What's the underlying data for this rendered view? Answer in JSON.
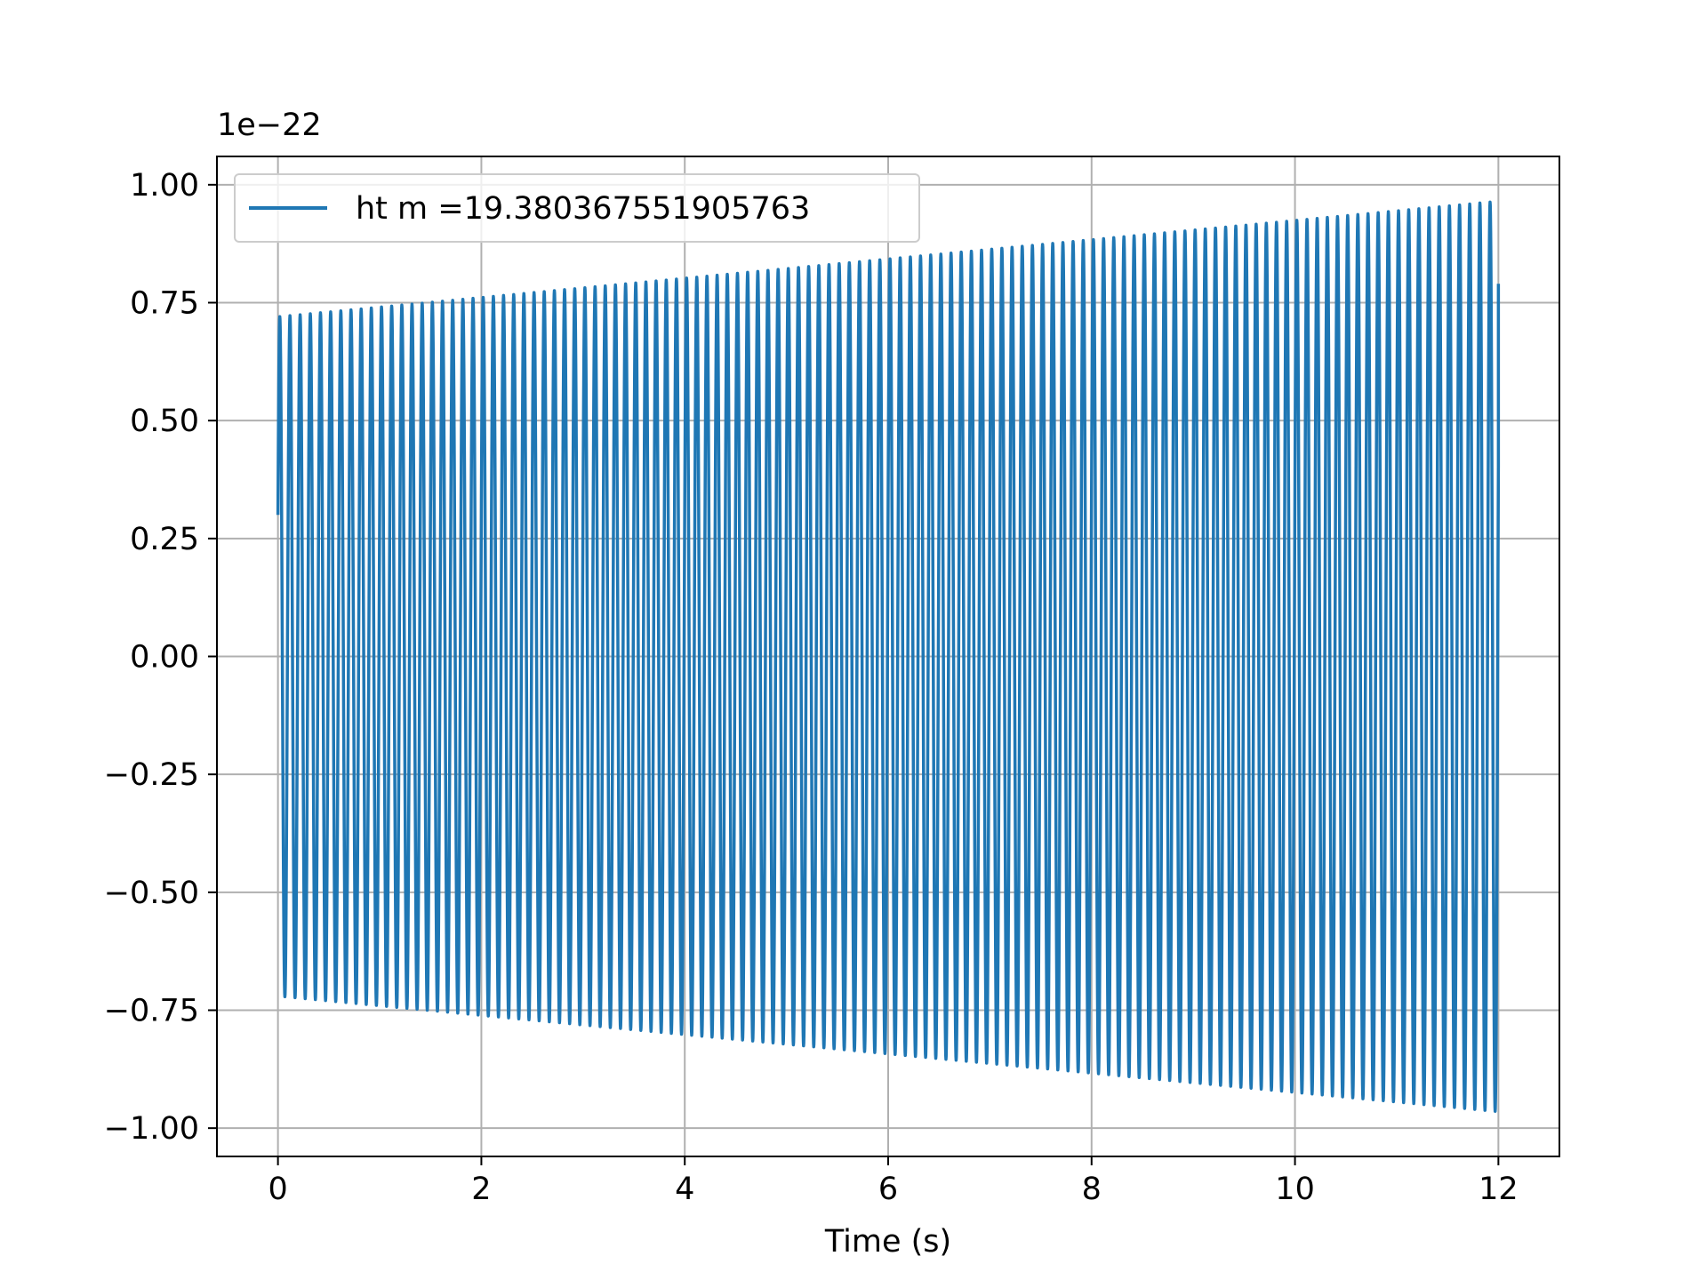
{
  "chart_data": {
    "type": "line",
    "title": "",
    "xlabel": "Time (s)",
    "ylabel": "",
    "y_offset_label": "1e−22",
    "y_scale": 1e-22,
    "xlim": [
      -0.6,
      12.6
    ],
    "ylim": [
      -1.06,
      1.06
    ],
    "x_ticks": [
      0,
      2,
      4,
      6,
      8,
      10,
      12
    ],
    "x_tick_labels": [
      "0",
      "2",
      "4",
      "6",
      "8",
      "10",
      "12"
    ],
    "y_ticks": [
      1.0,
      0.75,
      0.5,
      0.25,
      0.0,
      -0.25,
      -0.5,
      -0.75,
      -1.0
    ],
    "y_tick_labels": [
      "1.00",
      "0.75",
      "0.50",
      "0.25",
      "0.00",
      "−0.25",
      "−0.50",
      "−0.75",
      "−1.00"
    ],
    "grid": true,
    "legend_position": "upper-left",
    "series": [
      {
        "name": "ht m =19.380367551905763",
        "color": "#1f77b4",
        "signal": {
          "t_start": 0.0,
          "t_end": 12.0,
          "amplitude_start": 0.72,
          "amplitude_end": 0.965,
          "cycles": 120,
          "initial_value": 0.3,
          "final_value": 0.79
        }
      }
    ]
  }
}
